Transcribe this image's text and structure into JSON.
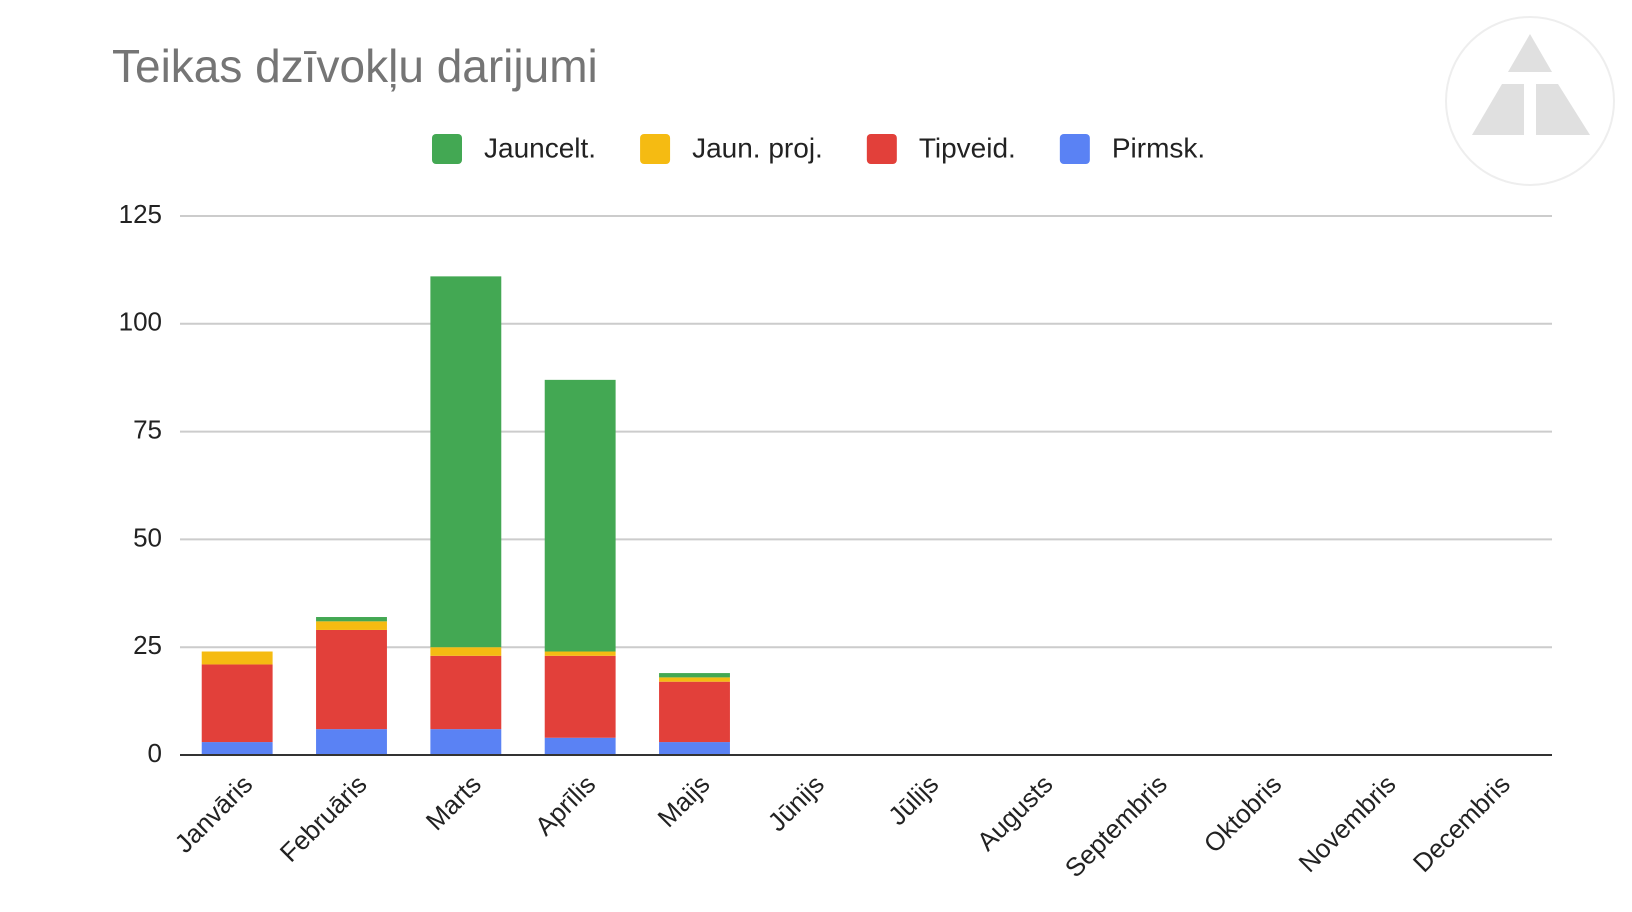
{
  "chart_data": {
    "type": "stacked-bar",
    "title": "Teikas dzīvokļu darijumi",
    "categories": [
      "Janvāris",
      "Februāris",
      "Marts",
      "Aprīlis",
      "Maijs",
      "Jūnijs",
      "Jūlijs",
      "Augusts",
      "Septembris",
      "Oktobris",
      "Novembris",
      "Decembris"
    ],
    "series": [
      {
        "name": "Jauncelt.",
        "color": "#43a853",
        "values": [
          0,
          1,
          86,
          63,
          1,
          0,
          0,
          0,
          0,
          0,
          0,
          0
        ]
      },
      {
        "name": "Jaun. proj.",
        "color": "#f5bb12",
        "values": [
          3,
          2,
          2,
          1,
          1,
          0,
          0,
          0,
          0,
          0,
          0,
          0
        ]
      },
      {
        "name": "Tipveid.",
        "color": "#e2403a",
        "values": [
          18,
          23,
          17,
          19,
          14,
          0,
          0,
          0,
          0,
          0,
          0,
          0
        ]
      },
      {
        "name": "Pirmsk.",
        "color": "#5a82f4",
        "values": [
          3,
          6,
          6,
          4,
          3,
          0,
          0,
          0,
          0,
          0,
          0,
          0
        ]
      }
    ],
    "ylim": [
      0,
      125
    ],
    "yticks": [
      0,
      25,
      50,
      75,
      100,
      125
    ],
    "grid": true,
    "legend": "top"
  }
}
